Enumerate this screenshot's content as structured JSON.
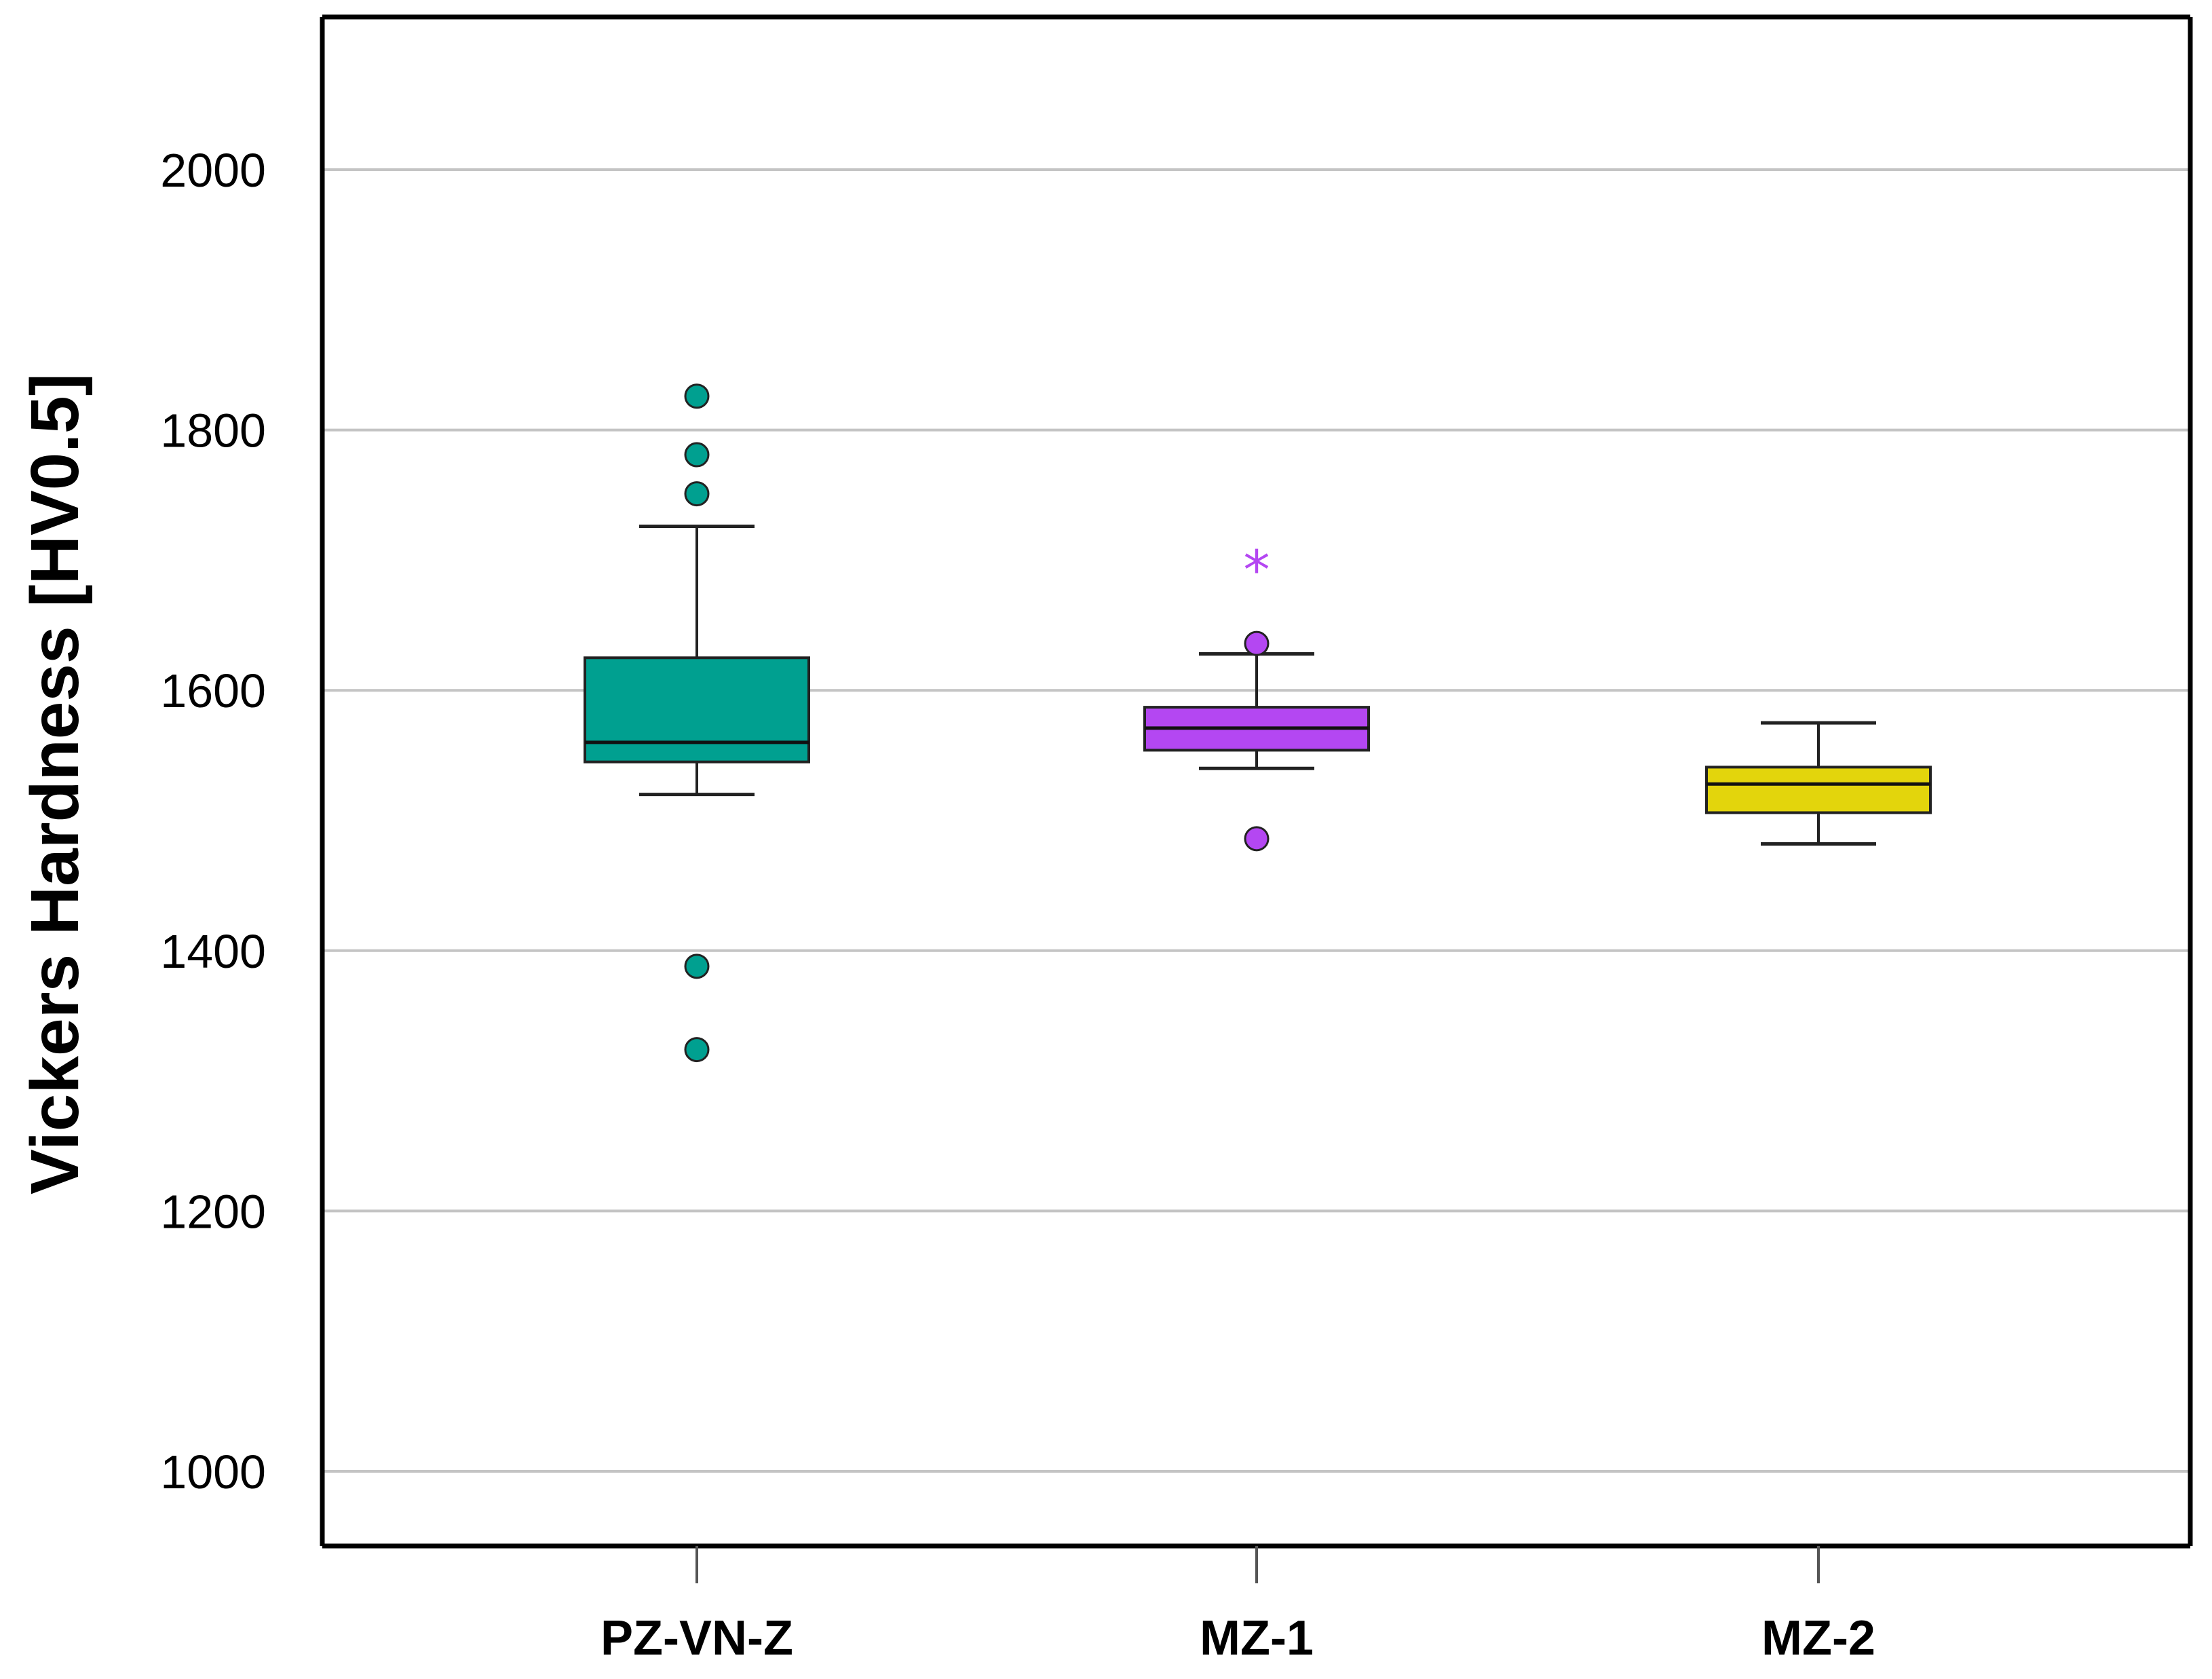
{
  "chart_data": {
    "type": "boxplot",
    "title": "",
    "xlabel": "",
    "ylabel": "Vickers Hardness [HV0.5]",
    "ylim": [
      950,
      2110
    ],
    "yticks": [
      1000,
      1200,
      1400,
      1600,
      1800,
      2000
    ],
    "ytick_labels": [
      "1000",
      "1200",
      "1400",
      "1600",
      "1800",
      "2000"
    ],
    "grid": true,
    "categories": [
      "PZ-VN-Z",
      "MZ-1",
      "MZ-2"
    ],
    "series": [
      {
        "name": "PZ-VN-Z",
        "color": "#00a090",
        "min": 1520,
        "q1": 1545,
        "median": 1560,
        "q3": 1625,
        "max": 1726,
        "outliers": [
          1826,
          1781,
          1751,
          1388,
          1324
        ],
        "extremes": []
      },
      {
        "name": "MZ-1",
        "color": "#b447f2",
        "min": 1540,
        "q1": 1554,
        "median": 1571,
        "q3": 1587,
        "max": 1628,
        "outliers": [
          1636,
          1486
        ],
        "extremes": [
          1695
        ]
      },
      {
        "name": "MZ-2",
        "color": "#e3d50c",
        "min": 1482,
        "q1": 1506,
        "median": 1528,
        "q3": 1541,
        "max": 1575,
        "outliers": [],
        "extremes": []
      }
    ]
  }
}
